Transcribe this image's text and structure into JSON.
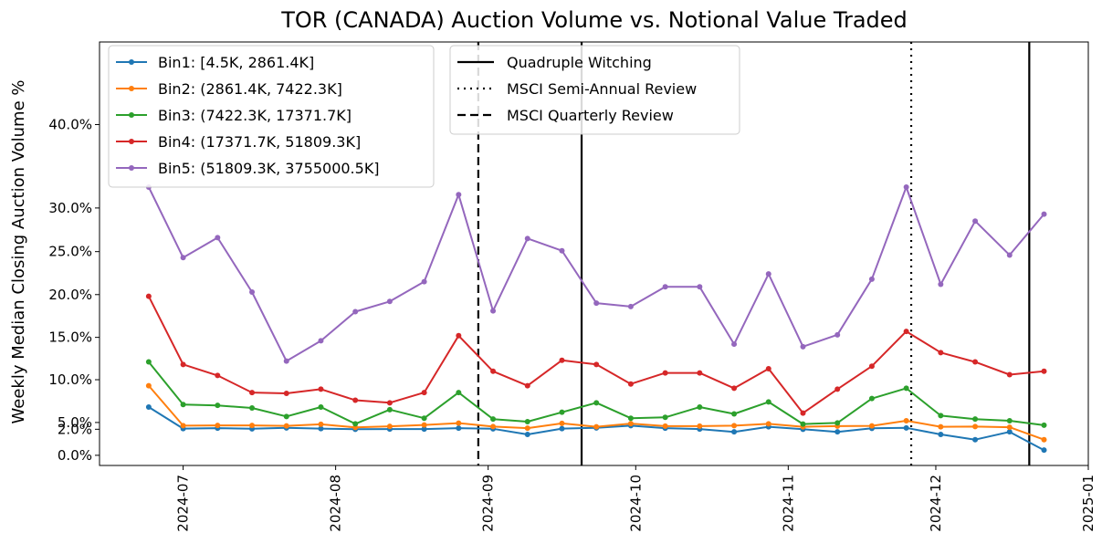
{
  "chart_data": {
    "type": "line",
    "title": "TOR (CANADA) Auction Volume vs. Notional Value Traded",
    "xlabel": "",
    "ylabel": "Weekly Median Closing Auction Volume %",
    "x": [
      "2024-06-24",
      "2024-07-01",
      "2024-07-08",
      "2024-07-15",
      "2024-07-22",
      "2024-07-29",
      "2024-08-05",
      "2024-08-12",
      "2024-08-19",
      "2024-08-26",
      "2024-09-02",
      "2024-09-09",
      "2024-09-16",
      "2024-09-23",
      "2024-09-30",
      "2024-10-07",
      "2024-10-14",
      "2024-10-21",
      "2024-10-28",
      "2024-11-04",
      "2024-11-11",
      "2024-11-18",
      "2024-11-25",
      "2024-12-02",
      "2024-12-09",
      "2024-12-16",
      "2024-12-23"
    ],
    "xlim": [
      "2024-06-14",
      "2025-01-01"
    ],
    "x_ticks": [
      "2024-07",
      "2024-08",
      "2024-09",
      "2024-10",
      "2024-11",
      "2024-12",
      "2025-01"
    ],
    "x_tick_dates": [
      "2024-07-01",
      "2024-08-01",
      "2024-09-01",
      "2024-10-01",
      "2024-11-01",
      "2024-12-01",
      "2025-01-01"
    ],
    "y_ticks": [
      0.0,
      2.0,
      5.0,
      10.0,
      15.0,
      20.0,
      25.0,
      30.0,
      40.0
    ],
    "y_tick_labels": [
      "0.0%",
      "2.0%",
      "5.0%",
      "10.0%",
      "15.0%",
      "20.0%",
      "25.0%",
      "30.0%",
      "40.0%"
    ],
    "y_tick_fracs": [
      0.024,
      0.0855,
      0.1015,
      0.2025,
      0.3025,
      0.4035,
      0.505,
      0.608,
      0.805
    ],
    "series": [
      {
        "name": "Bin1: [4.5K, 2861.4K]",
        "color": "#1f77b4",
        "values": [
          6.8,
          2.3,
          2.5,
          2.2,
          2.6,
          2.3,
          2.0,
          2.1,
          2.1,
          2.5,
          2.2,
          1.6,
          2.3,
          2.6,
          3.6,
          2.5,
          2.1,
          1.8,
          3.1,
          2.0,
          1.8,
          2.4,
          2.6,
          1.6,
          1.2,
          1.8,
          0.4
        ]
      },
      {
        "name": "Bin2: (2861.4K, 7422.3K]",
        "color": "#ff7f0e",
        "values": [
          9.3,
          3.6,
          3.7,
          3.7,
          3.5,
          4.2,
          2.8,
          3.3,
          3.9,
          4.7,
          3.2,
          2.5,
          4.6,
          3.1,
          4.5,
          3.4,
          3.4,
          3.6,
          4.4,
          3.1,
          3.4,
          3.5,
          5.2,
          3.1,
          3.2,
          2.9,
          1.2
        ]
      },
      {
        "name": "Bin3: (7422.3K, 17371.7K]",
        "color": "#2ca02c",
        "values": [
          12.1,
          7.1,
          7.0,
          6.7,
          5.7,
          6.8,
          4.4,
          6.5,
          5.5,
          8.5,
          5.4,
          5.1,
          6.2,
          7.3,
          5.5,
          5.6,
          6.8,
          6.0,
          7.4,
          4.3,
          4.8,
          7.8,
          9.0,
          5.8,
          5.4,
          5.2,
          3.8
        ]
      },
      {
        "name": "Bin4: (17371.7K, 51809.3K]",
        "color": "#d62728",
        "values": [
          19.8,
          11.8,
          10.5,
          8.5,
          8.4,
          8.9,
          7.6,
          7.3,
          8.5,
          15.2,
          11.0,
          9.3,
          12.3,
          11.8,
          9.5,
          10.8,
          10.8,
          9.0,
          11.3,
          6.1,
          8.9,
          11.6,
          15.7,
          13.2,
          12.1,
          10.6,
          11.0
        ]
      },
      {
        "name": "Bin5: (51809.3K, 3755000.5K]",
        "color": "#9467bd",
        "values": [
          32.5,
          24.3,
          26.6,
          20.3,
          12.2,
          14.6,
          18.0,
          19.2,
          21.5,
          31.6,
          18.1,
          26.5,
          25.1,
          19.0,
          18.6,
          20.9,
          20.9,
          14.2,
          22.4,
          13.9,
          15.3,
          21.8,
          32.5,
          21.2,
          28.5,
          24.6,
          29.3
        ]
      }
    ],
    "events": [
      {
        "name": "Quadruple Witching",
        "style": "solid",
        "dates": [
          "2024-09-20",
          "2024-12-20"
        ]
      },
      {
        "name": "MSCI Semi-Annual Review",
        "style": "dotted",
        "dates": [
          "2024-11-26"
        ]
      },
      {
        "name": "MSCI Quarterly Review",
        "style": "dashed",
        "dates": [
          "2024-08-30"
        ]
      }
    ],
    "legend_series_position": "top-left",
    "legend_events_position": "top-center",
    "grid": false
  }
}
